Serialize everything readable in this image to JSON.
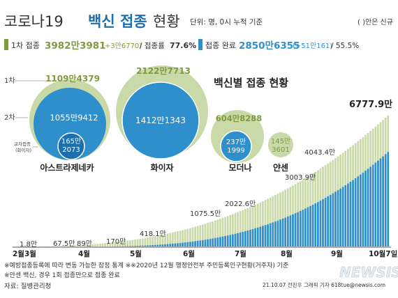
{
  "header": {
    "title_light": "코로나19",
    "title_bold": "백신 접종",
    "title_light2": "현황",
    "unit": "단위: 명, 0시 누적 기준",
    "note_right": "( )안은 신규"
  },
  "stats": {
    "first_label": "1차 접종",
    "first_value": "3982만3981",
    "first_new": "(+3만6770)",
    "first_rate_label": "/ 접종률",
    "first_rate": "77.6%",
    "full_label": "접종 완료",
    "full_value": "2850만6355",
    "full_new": "(+51만161)",
    "full_rate": "/ 55.5%"
  },
  "bubble_section": {
    "title": "백신별 접종 현황",
    "legend_first": "1차",
    "legend_second": "2차",
    "cross_label_1": "교차접종",
    "cross_label_2": "(화이자)",
    "vaccines": [
      {
        "name": "아스트라제네카",
        "first": "1109만4379",
        "second": "1055만9412",
        "cross_a": "165만",
        "cross_b": "2073",
        "first_n": 11094379,
        "second_n": 10559412,
        "cross_n": 1652073
      },
      {
        "name": "화이자",
        "first": "2122만7713",
        "second": "1412만1343",
        "first_n": 21227713,
        "second_n": 14121343
      },
      {
        "name": "모더나",
        "first": "604만8288",
        "second_a": "237만",
        "second_b": "1999",
        "first_n": 6048288,
        "second_n": 2371999
      },
      {
        "name": "얀센",
        "first_a": "145만",
        "first_b": "3601",
        "first_n": 1453601
      }
    ]
  },
  "chart_data": {
    "type": "bar",
    "x_labels": [
      "2월3월",
      "4월",
      "5월",
      "6월",
      "7월",
      "8월",
      "9월",
      "10월7일"
    ],
    "series": [
      {
        "name": "1차 접종",
        "color": "#c9d9a7"
      },
      {
        "name": "접종 완료",
        "color": "#2f8fcc"
      }
    ],
    "annotations": [
      {
        "label": "1.8만",
        "value": 1.8
      },
      {
        "label": "67.5만",
        "value": 67.5
      },
      {
        "label": "89만",
        "value": 89
      },
      {
        "label": "170만",
        "value": 170
      },
      {
        "label": "418.1만",
        "value": 418.1
      },
      {
        "label": "1075.5만",
        "value": 1075.5
      },
      {
        "label": "2022.6만",
        "value": 2022.6
      },
      {
        "label": "3003.9만",
        "value": 3003.9
      },
      {
        "label": "4043.4만",
        "value": 4043.4
      },
      {
        "label": "6777.9만",
        "value": 6777.9
      }
    ],
    "ylim": [
      0,
      7000
    ]
  },
  "footer": {
    "note1": "※예방접종등록에 따라 변동 가능한 잠정 통계 ※※2020년 12월 행정안전부 주민등록인구현황(거주자) 기준",
    "note2": "※얀센 백신, 경우 1회 접종만으로 접종 완료",
    "source": "자료: 질병관리청",
    "credit": "21.10.07 전진우 그래픽 기자 618tue@newsis.com",
    "logo": "NEWSIS"
  },
  "colors": {
    "green_dark": "#7f9b3e",
    "green_light": "#c9d9a7",
    "blue": "#2f8fcc",
    "blue_dark": "#1d6fae"
  }
}
